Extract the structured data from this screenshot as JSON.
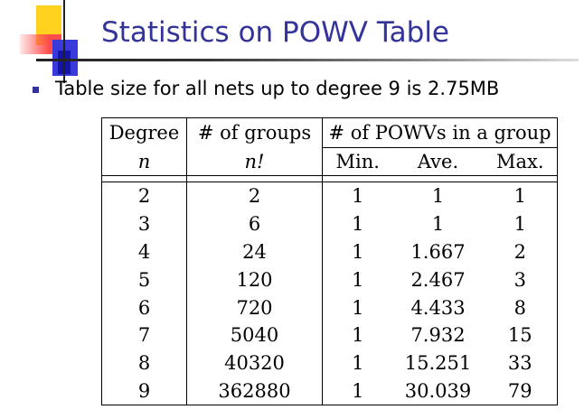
{
  "slide": {
    "title": "Statistics on POWV Table",
    "bullet": "Table size for all nets up to degree 9 is 2.75MB"
  },
  "table": {
    "headers": {
      "degree": "Degree",
      "degree_sym": "n",
      "groups": "# of groups",
      "groups_sym": "n!",
      "powvs": "# of POWVs in a group",
      "min": "Min.",
      "ave": "Ave.",
      "max": "Max."
    },
    "rows": [
      {
        "degree": "2",
        "groups": "2",
        "min": "1",
        "ave": "1",
        "max": "1"
      },
      {
        "degree": "3",
        "groups": "6",
        "min": "1",
        "ave": "1",
        "max": "1"
      },
      {
        "degree": "4",
        "groups": "24",
        "min": "1",
        "ave": "1.667",
        "max": "2"
      },
      {
        "degree": "5",
        "groups": "120",
        "min": "1",
        "ave": "2.467",
        "max": "3"
      },
      {
        "degree": "6",
        "groups": "720",
        "min": "1",
        "ave": "4.433",
        "max": "8"
      },
      {
        "degree": "7",
        "groups": "5040",
        "min": "1",
        "ave": "7.932",
        "max": "15"
      },
      {
        "degree": "8",
        "groups": "40320",
        "min": "1",
        "ave": "15.251",
        "max": "33"
      },
      {
        "degree": "9",
        "groups": "362880",
        "min": "1",
        "ave": "30.039",
        "max": "79"
      }
    ]
  }
}
